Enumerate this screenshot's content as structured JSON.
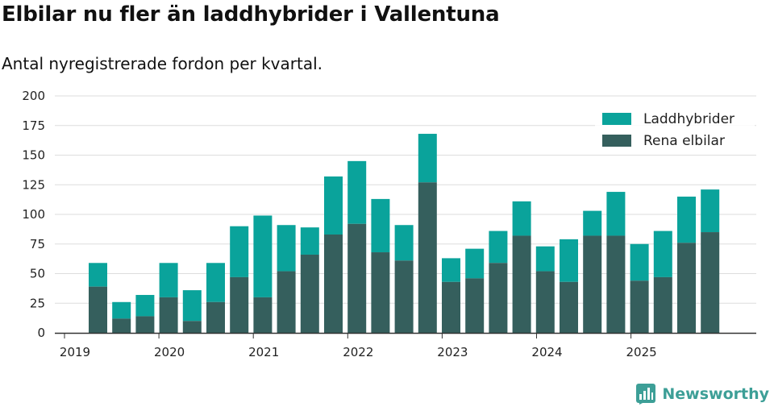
{
  "header": {
    "title": "Elbilar nu fler än laddhybrider i Vallentuna",
    "subtitle": "Antal nyregistrerade fordon per kvartal."
  },
  "brand": {
    "name": "Newsworthy"
  },
  "colors": {
    "hybrid": "#0aa39b",
    "electric": "#355f5d",
    "grid": "#dddddd",
    "axis": "#333333"
  },
  "chart_data": {
    "type": "bar",
    "stacked": true,
    "title": "Elbilar nu fler än laddhybrider i Vallentuna",
    "subtitle": "Antal nyregistrerade fordon per kvartal.",
    "ylim": [
      0,
      200
    ],
    "yticks": [
      0,
      25,
      50,
      75,
      100,
      125,
      150,
      175,
      200
    ],
    "year_labels": [
      "2019",
      "2020",
      "2021",
      "2022",
      "2023",
      "2024",
      "2025"
    ],
    "legend": [
      "Laddhybrider",
      "Rena elbilar"
    ],
    "legend_position": "top-right",
    "categories": [
      "2019 Q2",
      "2019 Q3",
      "2019 Q4",
      "2020 Q1",
      "2020 Q2",
      "2020 Q3",
      "2020 Q4",
      "2021 Q1",
      "2021 Q2",
      "2021 Q3",
      "2021 Q4",
      "2022 Q1",
      "2022 Q2",
      "2022 Q3",
      "2022 Q4",
      "2023 Q1",
      "2023 Q2",
      "2023 Q3",
      "2023 Q4",
      "2024 Q1",
      "2024 Q2",
      "2024 Q3",
      "2024 Q4",
      "2025 Q1",
      "2025 Q2",
      "2025 Q3",
      "2025 Q4"
    ],
    "series": [
      {
        "name": "Rena elbilar",
        "values": [
          39,
          12,
          14,
          30,
          10,
          26,
          47,
          30,
          52,
          66,
          83,
          92,
          68,
          61,
          127,
          43,
          46,
          59,
          82,
          52,
          43,
          82,
          82,
          44,
          47,
          76,
          85
        ]
      },
      {
        "name": "Laddhybrider",
        "values": [
          20,
          14,
          18,
          29,
          26,
          33,
          43,
          69,
          39,
          23,
          49,
          53,
          45,
          30,
          41,
          20,
          25,
          27,
          29,
          21,
          36,
          21,
          37,
          31,
          39,
          39,
          36
        ]
      }
    ]
  }
}
